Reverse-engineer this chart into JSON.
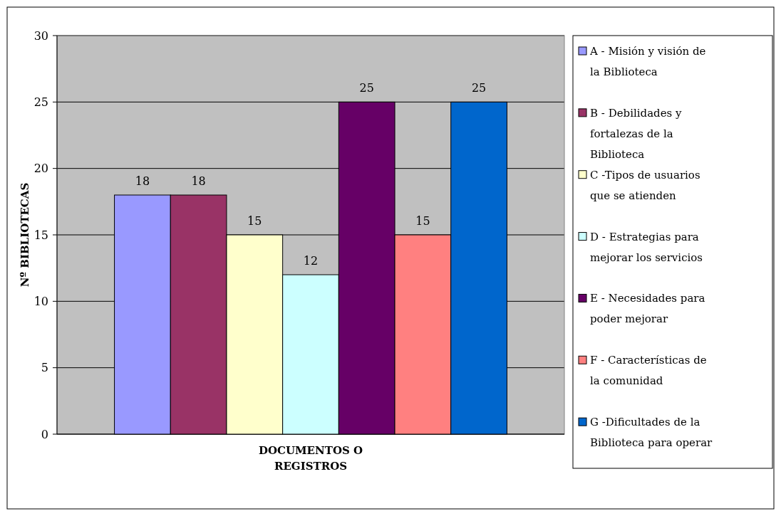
{
  "chart_data": {
    "type": "bar",
    "xlabel": "DOCUMENTOS O REGISTROS",
    "ylabel": "Nº BIBLIOTECAS",
    "categories": [
      null
    ],
    "series": [
      {
        "name": "A - Misión y visión de la Biblioteca",
        "color": "#9999ff",
        "values": [
          18
        ]
      },
      {
        "name": "B - Debilidades y fortalezas de la Biblioteca",
        "color": "#993366",
        "values": [
          18
        ]
      },
      {
        "name": "C -Tipos de usuarios que se atienden",
        "color": "#ffffcc",
        "values": [
          15
        ]
      },
      {
        "name": "D - Estrategias para mejorar los servicios",
        "color": "#ccffff",
        "values": [
          12
        ]
      },
      {
        "name": "E - Necesidades para poder mejorar",
        "color": "#660066",
        "values": [
          25
        ]
      },
      {
        "name": "F - Características de la comunidad",
        "color": "#ff8080",
        "values": [
          15
        ]
      },
      {
        "name": "G -Dificultades de la Biblioteca para operar",
        "color": "#0066cc",
        "values": [
          25
        ]
      }
    ],
    "ylim": [
      0,
      30
    ],
    "yticks": [
      0,
      5,
      10,
      15,
      20,
      25,
      30
    ],
    "grid": "y",
    "legend": "right",
    "data_labels": true
  }
}
